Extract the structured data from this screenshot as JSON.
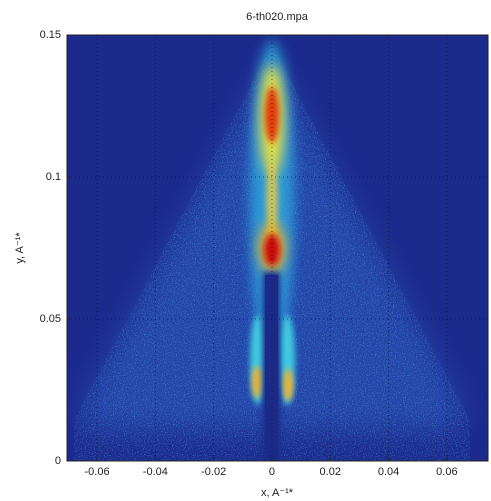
{
  "chart_data": {
    "type": "heatmap",
    "title": "6-th020.mpa",
    "x_label": "x, A⁻¹*",
    "y_label": "y, A⁻¹*",
    "xlim": [
      -0.0703,
      0.0741
    ],
    "ylim": [
      0,
      0.15
    ],
    "xticks": [
      -0.06,
      -0.04,
      -0.02,
      0,
      0.02,
      0.04,
      0.06
    ],
    "yticks": [
      0,
      0.05,
      0.1,
      0.15
    ],
    "grid": true
  }
}
